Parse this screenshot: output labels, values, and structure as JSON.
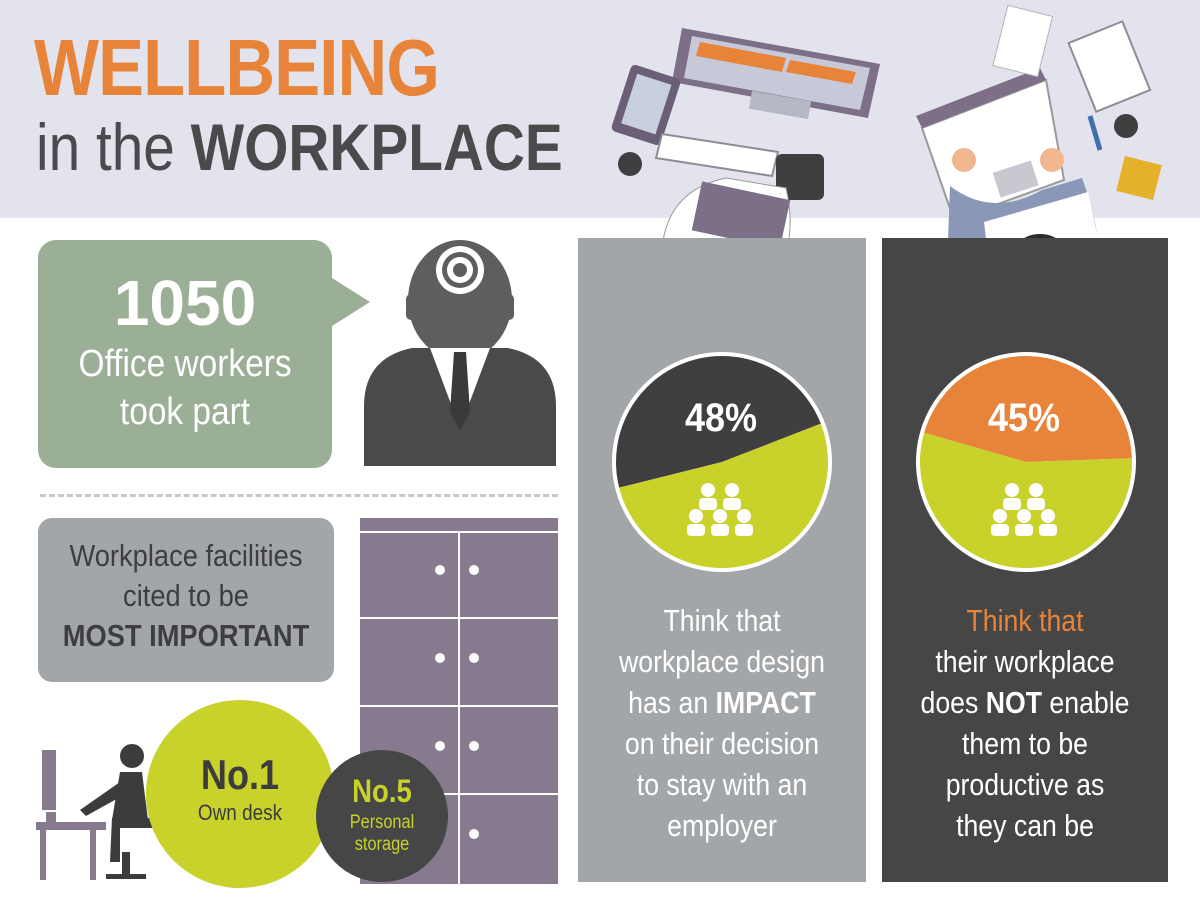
{
  "header": {
    "title_main": "WELLBEING",
    "title_prefix": "in the",
    "title_suffix": "WORKPLACE"
  },
  "participants": {
    "count": "1050",
    "text_line1": "Office workers",
    "text_line2": "took part"
  },
  "facilities": {
    "line1": "Workplace facilities",
    "line2": "cited to be",
    "line3": "MOST IMPORTANT",
    "rank1_title": "No.1",
    "rank1_label": "Own desk",
    "rank2_title": "No.5",
    "rank2_label_line1": "Personal",
    "rank2_label_line2": "storage"
  },
  "stat_impact": {
    "percent_label": "48%",
    "percent_value": 48,
    "caption_line1": "Think that",
    "caption_line2": "workplace design",
    "caption_line3a": "has an ",
    "caption_line3b": "IMPACT",
    "caption_line4": "on their decision",
    "caption_line5": "to stay with an",
    "caption_line6": "employer"
  },
  "stat_productivity": {
    "percent_label": "45%",
    "percent_value": 45,
    "caption_line1": "Think that",
    "caption_line2": "their workplace",
    "caption_line3a": "does ",
    "caption_line3b": "NOT",
    "caption_line3c": " enable",
    "caption_line4": "them to be",
    "caption_line5": "productive as",
    "caption_line6": "they can be"
  },
  "colors": {
    "orange": "#e8833a",
    "lime": "#c8d22b",
    "dark": "#464647",
    "grey": "#a3a6a8",
    "sage": "#9bae96",
    "purple": "#877a8e"
  },
  "icons": [
    "gear-icon",
    "businessman-icon",
    "desk-worker-icon",
    "locker-icon",
    "group-icon",
    "monitor-icon",
    "laptop-icon",
    "tablet-icon",
    "keyboard-icon",
    "notebook-icon",
    "coffee-cup-icon"
  ]
}
